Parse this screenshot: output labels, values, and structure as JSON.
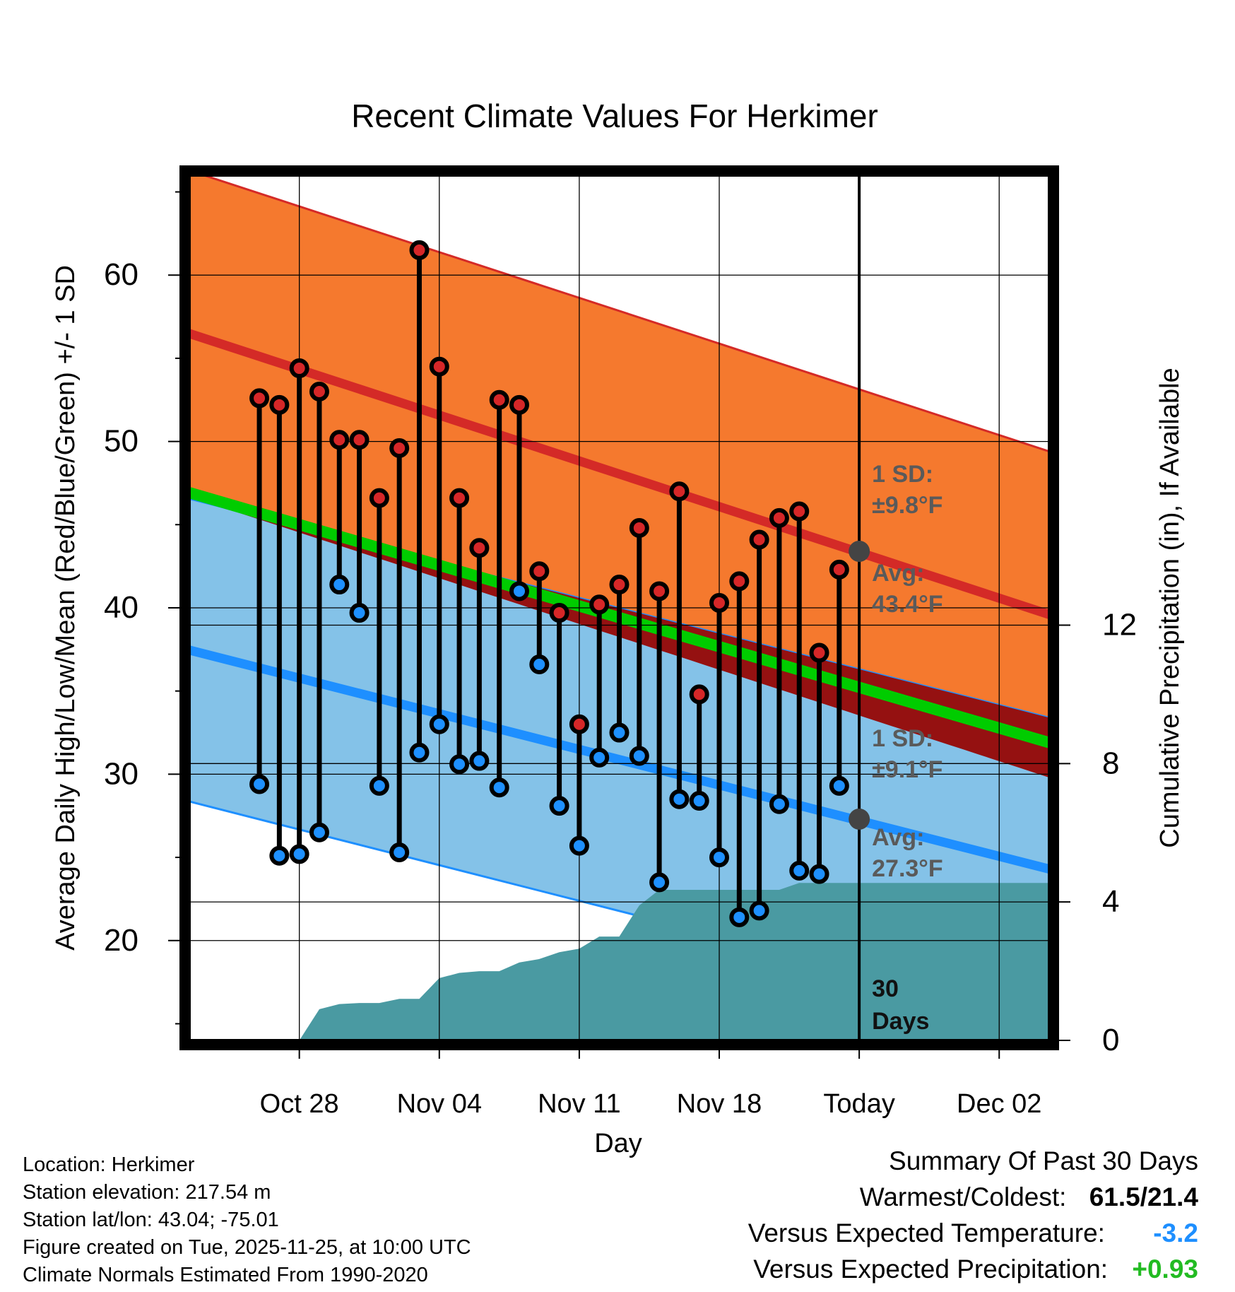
{
  "chart_data": {
    "type": "line",
    "title": "Recent Climate Values For Herkimer",
    "xlabel": "Day",
    "ylabel": "Average Daily High/Low/Mean (Red/Blue/Green) +/- 1 SD",
    "y2label": "Cumulative Precipitation (in), If Available",
    "ylim": [
      14,
      66
    ],
    "y2lim": [
      0,
      25
    ],
    "x_range_days": [
      -33.5,
      9.5
    ],
    "x_ticks": [
      {
        "day": -28,
        "label": "Oct 28"
      },
      {
        "day": -21,
        "label": "Nov 04"
      },
      {
        "day": -14,
        "label": "Nov 11"
      },
      {
        "day": -7,
        "label": "Nov 18"
      },
      {
        "day": 0,
        "label": "Today"
      },
      {
        "day": 7,
        "label": "Dec 02"
      }
    ],
    "y_ticks": [
      20,
      30,
      40,
      50,
      60
    ],
    "y2_ticks": [
      0,
      4,
      8,
      12
    ],
    "normals": {
      "high_avg_start": 55.9,
      "high_avg_end": 39.6,
      "high_sd": 9.8,
      "low_avg_start": 37.0,
      "low_avg_end": 24.3,
      "low_sd": 9.1,
      "mean_start": 46.4,
      "mean_end": 31.9,
      "today_high_avg": 43.4,
      "today_low_avg": 27.3
    },
    "series": [
      {
        "name": "Daily High",
        "color": "#d62728",
        "values": [
          52.6,
          52.2,
          54.4,
          53.0,
          50.1,
          50.1,
          46.6,
          49.6,
          61.5,
          54.5,
          46.6,
          43.6,
          52.5,
          52.2,
          42.2,
          39.7,
          33.0,
          40.2,
          41.4,
          44.8,
          41.0,
          47.0,
          34.8,
          40.3,
          41.6,
          44.1,
          45.4,
          45.8,
          37.3,
          42.3
        ]
      },
      {
        "name": "Daily Low",
        "color": "#1e90ff",
        "values": [
          29.4,
          25.1,
          25.2,
          26.5,
          41.4,
          39.7,
          29.3,
          25.3,
          31.3,
          33.0,
          30.6,
          30.8,
          29.2,
          41.0,
          36.6,
          28.1,
          25.7,
          31.0,
          32.5,
          31.1,
          23.5,
          28.5,
          28.4,
          25.0,
          21.4,
          21.8,
          28.2,
          24.2,
          24.0,
          29.3
        ]
      }
    ],
    "precip": {
      "days": [
        -32,
        -31,
        -30,
        -29,
        -28,
        -27,
        -26,
        -25,
        -24,
        -23,
        -22,
        -21,
        -20,
        -19,
        -18,
        -17,
        -16,
        -15,
        -14,
        -13,
        -12,
        -11,
        -10,
        -9,
        -8,
        -7,
        -6,
        -5,
        -4,
        -3,
        -2,
        -1,
        0
      ],
      "cumulative_in": [
        0,
        0,
        0,
        0,
        0,
        0.9,
        1.05,
        1.08,
        1.08,
        1.2,
        1.2,
        1.8,
        1.95,
        2.0,
        2.0,
        2.25,
        2.35,
        2.55,
        2.65,
        3.0,
        3.0,
        3.9,
        4.35,
        4.35,
        4.35,
        4.35,
        4.35,
        4.35,
        4.35,
        4.55,
        4.55,
        4.55,
        4.55
      ]
    },
    "annotations": {
      "high_sd_label": "1 SD:",
      "high_sd_value": "±9.8°F",
      "high_avg_label": "Avg:",
      "high_avg_value": "43.4°F",
      "low_sd_label": "1 SD:",
      "low_sd_value": "±9.1°F",
      "low_avg_label": "Avg:",
      "low_avg_value": "27.3°F",
      "window_count": "30",
      "window_unit": "Days"
    },
    "colors": {
      "high_band": "#f5792e",
      "high_line": "#d42a27",
      "low_band": "#84c2e8",
      "low_line": "#1e8fff",
      "mean_line": "#00cc00",
      "overlap": "#951111",
      "precip": "#4a9aa2",
      "avg_dot": "#444444",
      "annotation": "#5a5a5a"
    }
  },
  "info": {
    "location": "Location: Herkimer",
    "elevation": "Station elevation: 217.54 m",
    "latlon": "Station lat/lon: 43.04; -75.01",
    "created": "Figure created on Tue, 2025-11-25, at 10:00 UTC",
    "normals": "Climate Normals Estimated From 1990-2020"
  },
  "summary": {
    "heading": "Summary Of Past 30 Days",
    "warm_cold_label": "Warmest/Coldest:",
    "warmest": "61.5",
    "separator": "/",
    "coldest": "21.4",
    "temp_label": "Versus Expected Temperature:",
    "temp_value": "-3.2",
    "temp_color": "#1e8fff",
    "precip_label": "Versus Expected Precipitation:",
    "precip_value": "+0.93",
    "precip_color": "#22bb22"
  }
}
